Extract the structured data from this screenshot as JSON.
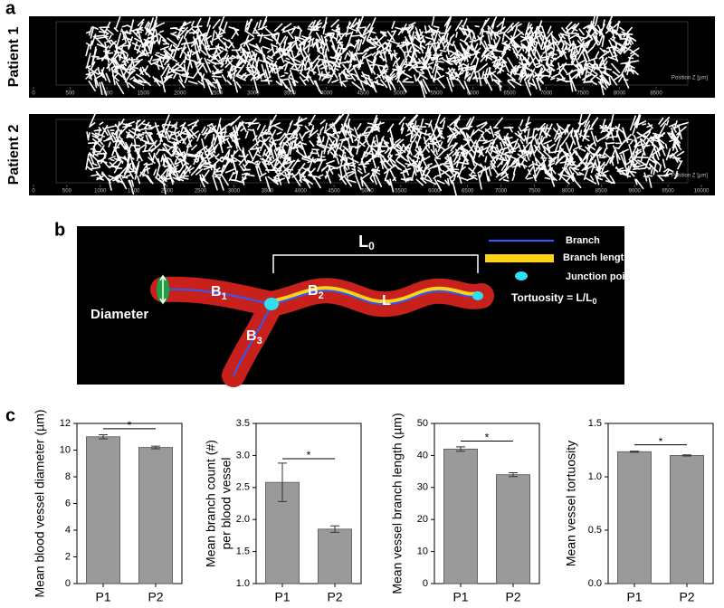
{
  "panel_a": {
    "label": "a",
    "rows": [
      {
        "name": "Patient 1",
        "axis_label": "Position Z [µm]",
        "ticks": [
          0,
          500,
          1000,
          1500,
          2000,
          2500,
          3000,
          3500,
          4000,
          4500,
          5000,
          5500,
          6000,
          6500,
          7000,
          7500,
          8000,
          8500
        ]
      },
      {
        "name": "Patient 2",
        "axis_label": "Position Z [µm]",
        "ticks": [
          0,
          500,
          1000,
          1500,
          2000,
          2500,
          3000,
          3500,
          4000,
          4500,
          5000,
          5500,
          6000,
          6500,
          7000,
          7500,
          8000,
          8500,
          9000,
          9500,
          10000
        ]
      }
    ]
  },
  "panel_b": {
    "label": "b",
    "L0": {
      "base": "L",
      "sub": "0"
    },
    "L": "L",
    "diameter": "Diameter",
    "branches": [
      {
        "base": "B",
        "sub": "1"
      },
      {
        "base": "B",
        "sub": "2"
      },
      {
        "base": "B",
        "sub": "3"
      }
    ],
    "legend": [
      "Branch",
      "Branch length",
      "Junction point"
    ],
    "tortuosity": {
      "text": "Tortuosity = L/L",
      "sub": "0"
    }
  },
  "panel_c": {
    "label": "c"
  },
  "chart_data": [
    {
      "type": "bar",
      "ylabel": [
        "Mean blood vessel diameter (µm)"
      ],
      "categories": [
        "P1",
        "P2"
      ],
      "values": [
        11.0,
        10.2
      ],
      "errors": [
        0.15,
        0.1
      ],
      "color": "#9a9a9a",
      "ylim": [
        0,
        12
      ],
      "yticks": [
        0,
        2,
        4,
        6,
        8,
        10,
        12
      ],
      "significance": {
        "label": "*",
        "y": 11.6
      }
    },
    {
      "type": "bar",
      "ylabel": [
        "Mean branch count (#)",
        "per blood vessel"
      ],
      "categories": [
        "P1",
        "P2"
      ],
      "values": [
        2.58,
        1.85
      ],
      "errors": [
        0.3,
        0.05
      ],
      "color": "#9a9a9a",
      "ylim": [
        1,
        3.5
      ],
      "yticks": [
        {
          "value": 1,
          "label": "1.0"
        },
        1.5,
        {
          "value": 2,
          "label": "2.0"
        },
        2.5,
        {
          "value": 3,
          "label": "3.0"
        },
        3.5
      ],
      "significance": {
        "label": "*",
        "y": 2.95
      }
    },
    {
      "type": "bar",
      "ylabel": [
        "Mean vessel branch length (µm)"
      ],
      "categories": [
        "P1",
        "P2"
      ],
      "values": [
        42,
        34
      ],
      "errors": [
        0.7,
        0.6
      ],
      "color": "#9a9a9a",
      "ylim": [
        0,
        50
      ],
      "yticks": [
        0,
        10,
        20,
        30,
        40,
        50
      ],
      "significance": {
        "label": "*",
        "y": 44.5
      }
    },
    {
      "type": "bar",
      "ylabel": [
        "Mean vessel tortuosity"
      ],
      "categories": [
        "P1",
        "P2"
      ],
      "values": [
        1.235,
        1.2
      ],
      "errors": [
        0.005,
        0.005
      ],
      "color": "#9a9a9a",
      "ylim": [
        0,
        1.5
      ],
      "yticks": [
        {
          "value": 0,
          "label": "0.0"
        },
        0.5,
        {
          "value": 1,
          "label": "1.0"
        },
        1.5
      ],
      "significance": {
        "label": "*",
        "y": 1.3
      }
    }
  ]
}
